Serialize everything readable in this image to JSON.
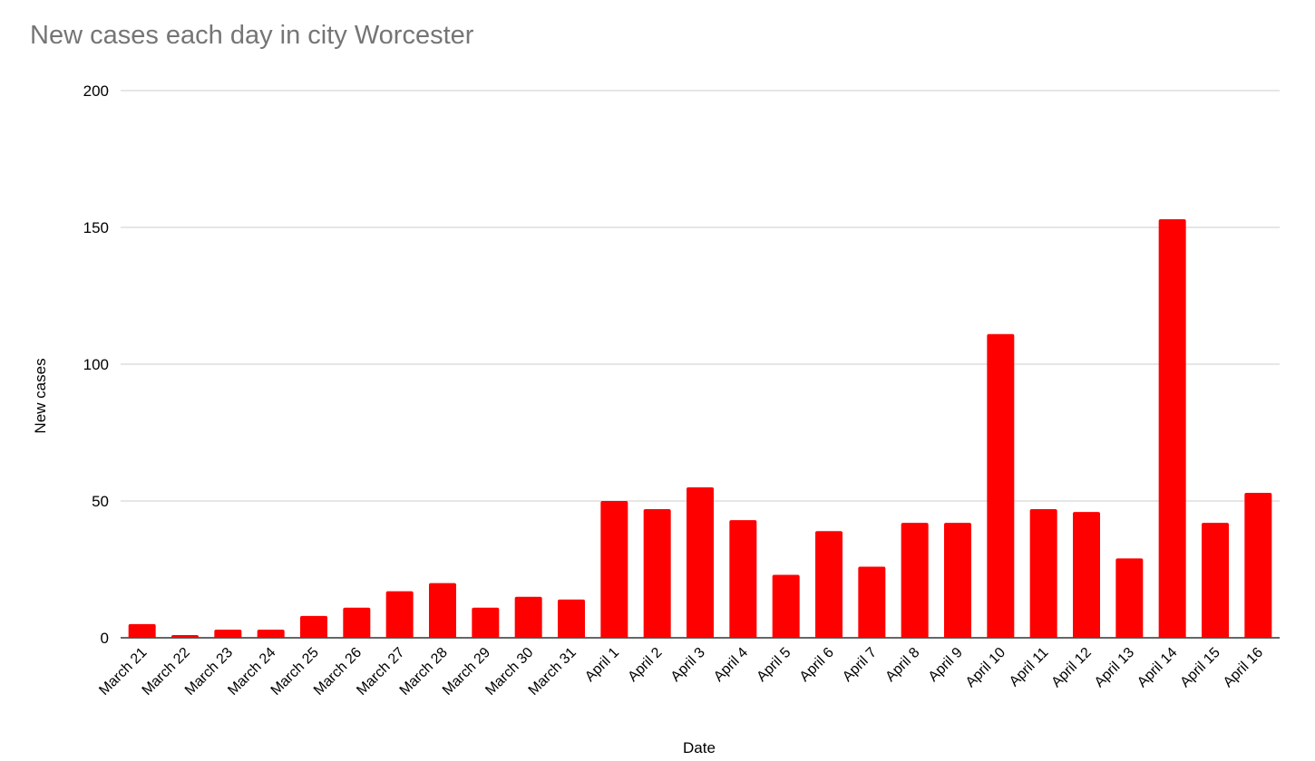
{
  "chart_data": {
    "type": "bar",
    "title": "New cases each day in city Worcester",
    "xlabel": "Date",
    "ylabel": "New cases",
    "ylim": [
      0,
      200
    ],
    "yticks": [
      0,
      50,
      100,
      150,
      200
    ],
    "grid": true,
    "legend": "none",
    "bar_color": "#ff0000",
    "categories": [
      "March 21",
      "March 22",
      "March 23",
      "March 24",
      "March 25",
      "March 26",
      "March 27",
      "March 28",
      "March 29",
      "March 30",
      "March 31",
      "April 1",
      "April 2",
      "April 3",
      "April 4",
      "April 5",
      "April 6",
      "April 7",
      "April 8",
      "April 9",
      "April 10",
      "April 11",
      "April 12",
      "April 13",
      "April 14",
      "April 15",
      "April 16"
    ],
    "series": [
      {
        "name": "New cases",
        "values": [
          5,
          1,
          3,
          3,
          8,
          11,
          17,
          20,
          11,
          15,
          14,
          50,
          47,
          55,
          43,
          23,
          39,
          26,
          42,
          42,
          111,
          47,
          46,
          29,
          153,
          42,
          53
        ]
      }
    ]
  }
}
